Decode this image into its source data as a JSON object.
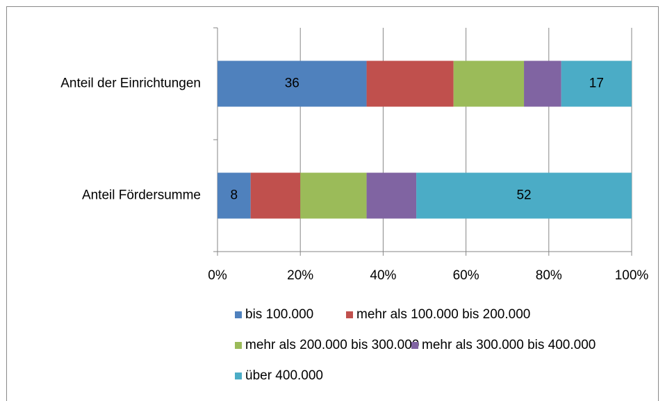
{
  "chart_data": {
    "type": "stacked_barh",
    "categories": [
      "Anteil der Einrichtungen",
      "Anteil Fördersumme"
    ],
    "series": [
      {
        "name": "bis 100.000",
        "color": "#4f81bd",
        "values": [
          36,
          8
        ],
        "show_labels": true
      },
      {
        "name": "mehr als 100.000 bis 200.000",
        "color": "#c0504d",
        "values": [
          21,
          12
        ],
        "show_labels": false
      },
      {
        "name": "mehr als 200.000 bis 300.000",
        "color": "#9bbb59",
        "values": [
          17,
          16
        ],
        "show_labels": false
      },
      {
        "name": "mehr als 300.000 bis 400.000",
        "color": "#8064a2",
        "values": [
          9,
          12
        ],
        "show_labels": false
      },
      {
        "name": "über 400.000",
        "color": "#4bacc6",
        "values": [
          17,
          52
        ],
        "show_labels": true
      }
    ],
    "xlim": [
      0,
      100
    ],
    "xticks": [
      {
        "value": 0,
        "label": "0%"
      },
      {
        "value": 20,
        "label": "20%"
      },
      {
        "value": 40,
        "label": "40%"
      },
      {
        "value": 60,
        "label": "60%"
      },
      {
        "value": 80,
        "label": "80%"
      },
      {
        "value": 100,
        "label": "100%"
      }
    ],
    "grid": true,
    "legend": "bottom"
  }
}
